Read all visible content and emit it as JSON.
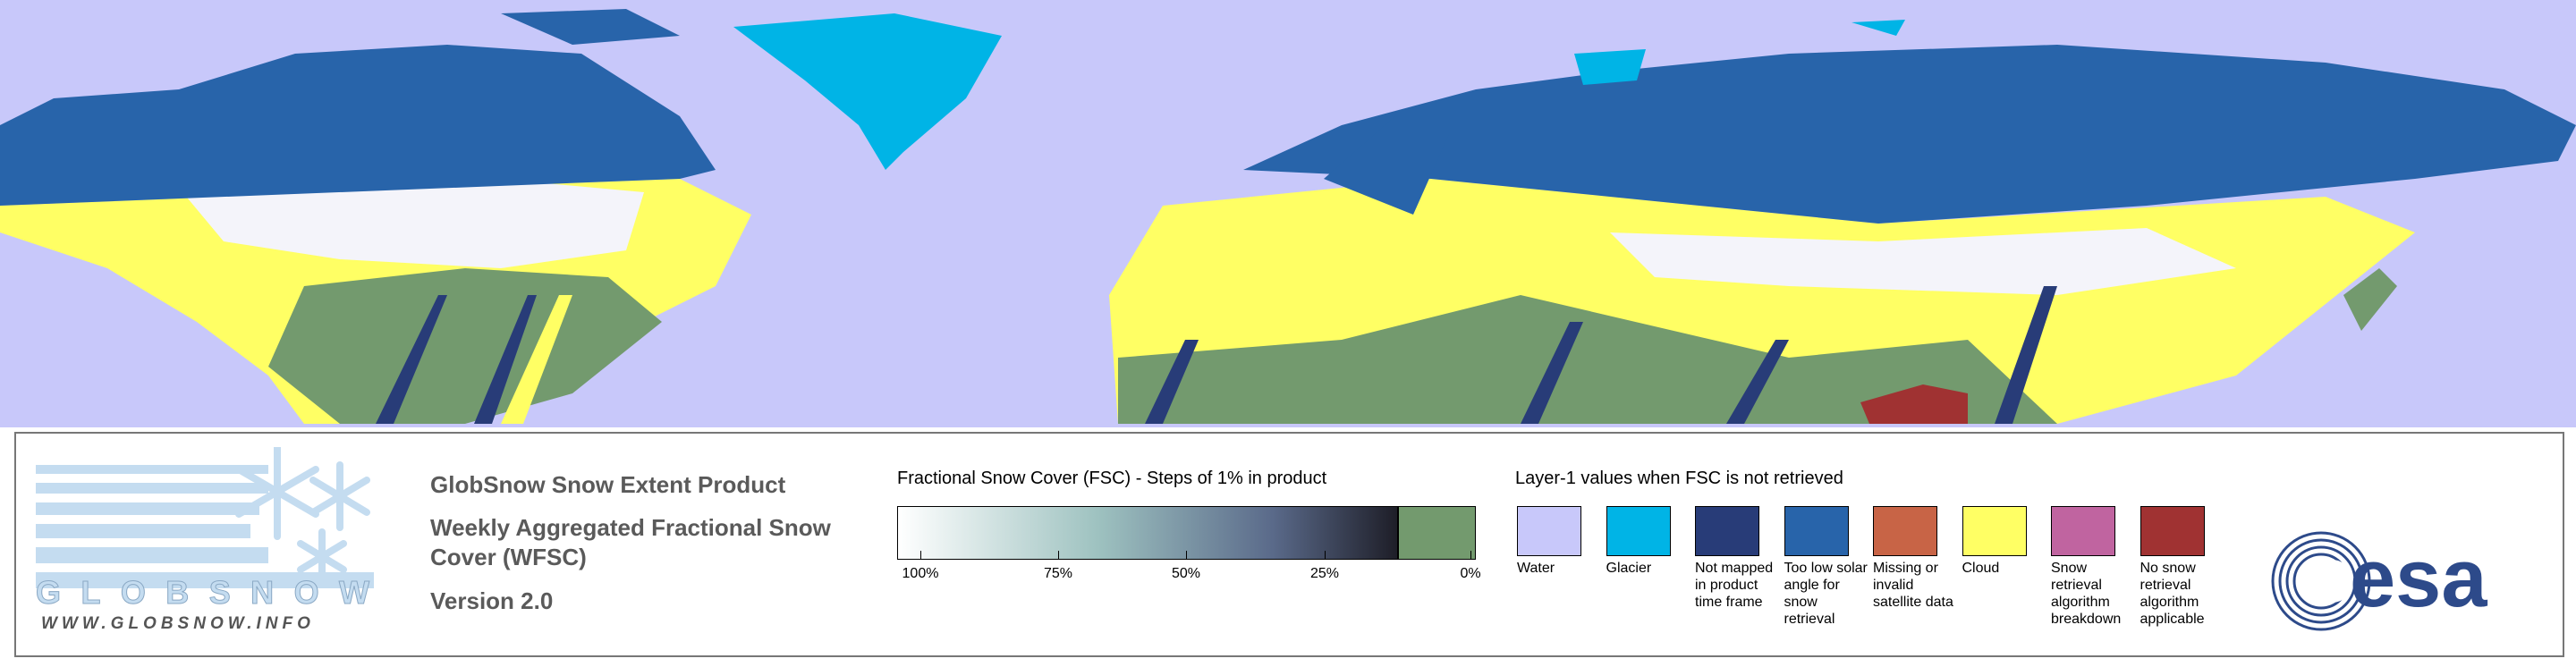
{
  "logo": {
    "name": "GLOBSNOW",
    "url": "WWW.GLOBSNOW.INFO"
  },
  "product": {
    "title": "GlobSnow Snow Extent Product",
    "subtitle": "Weekly Aggregated Fractional Snow Cover (WFSC)",
    "version": "Version 2.0"
  },
  "fsc_legend": {
    "title": "Fractional Snow Cover (FSC) - Steps of 1% in product",
    "labels": [
      "100%",
      "75%",
      "50%",
      "25%",
      "0%"
    ]
  },
  "layer1_legend": {
    "title": "Layer-1 values when FSC is not retrieved",
    "items": [
      {
        "label": "Water",
        "color": "#c8c8fa"
      },
      {
        "label": "Glacier",
        "color": "#00b4e6"
      },
      {
        "label": "Not mapped in product time frame",
        "color": "#283c78"
      },
      {
        "label": "Too low solar angle for snow retrieval",
        "color": "#2864aa"
      },
      {
        "label": "Missing or invalid satellite data",
        "color": "#c86446"
      },
      {
        "label": "Cloud",
        "color": "#ffff64"
      },
      {
        "label": "Snow retrieval algorithm breakdown",
        "color": "#c064a0"
      },
      {
        "label": "No snow retrieval algorithm applicable",
        "color": "#a03232"
      }
    ]
  },
  "esa_logo": "esa"
}
